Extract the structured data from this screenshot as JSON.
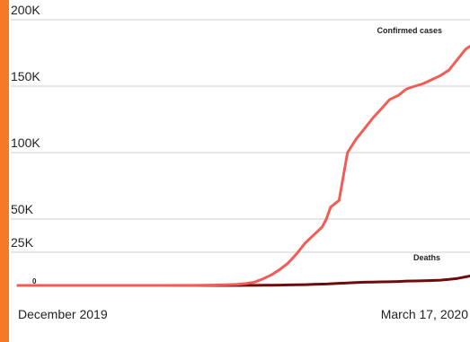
{
  "colors": {
    "accent_bar": "#f47a2a",
    "confirmed": "#f35b57",
    "deaths": "#6e0c0c",
    "grid": "#cfcfcf",
    "text": "#222222"
  },
  "chart_data": {
    "type": "line",
    "title": "",
    "xlabel": "",
    "ylabel": "",
    "x_start_label": "December 2019",
    "x_end_label": "March 17, 2020",
    "x": [
      "2019-12-01",
      "2019-12-08",
      "2019-12-15",
      "2019-12-22",
      "2019-12-29",
      "2020-01-05",
      "2020-01-12",
      "2020-01-16",
      "2020-01-20",
      "2020-01-22",
      "2020-01-24",
      "2020-01-26",
      "2020-01-28",
      "2020-01-30",
      "2020-02-01",
      "2020-02-03",
      "2020-02-05",
      "2020-02-07",
      "2020-02-09",
      "2020-02-11",
      "2020-02-12",
      "2020-02-13",
      "2020-02-15",
      "2020-02-17",
      "2020-02-19",
      "2020-02-21",
      "2020-02-23",
      "2020-02-25",
      "2020-02-27",
      "2020-02-29",
      "2020-03-02",
      "2020-03-04",
      "2020-03-06",
      "2020-03-08",
      "2020-03-10",
      "2020-03-12",
      "2020-03-14",
      "2020-03-16",
      "2020-03-17"
    ],
    "ylim": [
      0,
      200000
    ],
    "y_ticks": [
      {
        "value": 200000,
        "label": "200K"
      },
      {
        "value": 150000,
        "label": "150K"
      },
      {
        "value": 100000,
        "label": "100K"
      },
      {
        "value": 50000,
        "label": "50K"
      },
      {
        "value": 25000,
        "label": "25K"
      },
      {
        "value": 0,
        "label": "0"
      }
    ],
    "grid": true,
    "series": [
      {
        "name": "Confirmed cases",
        "values": [
          0,
          0,
          0,
          0,
          0,
          0,
          100,
          300,
          600,
          900,
          1400,
          2500,
          5000,
          8000,
          12000,
          17000,
          24000,
          32000,
          38000,
          44000,
          50000,
          59000,
          64000,
          100000,
          110000,
          118000,
          126000,
          133000,
          140000,
          143000,
          148000,
          150000,
          152000,
          155000,
          158000,
          162000,
          170000,
          178000,
          180000
        ]
      },
      {
        "name": "Deaths",
        "values": [
          0,
          0,
          0,
          0,
          0,
          0,
          0,
          10,
          20,
          30,
          50,
          80,
          120,
          200,
          300,
          400,
          500,
          600,
          800,
          1000,
          1100,
          1300,
          1600,
          1900,
          2200,
          2400,
          2600,
          2700,
          2800,
          3000,
          3300,
          3400,
          3600,
          3700,
          4000,
          4500,
          5300,
          6500,
          7100
        ]
      }
    ]
  }
}
